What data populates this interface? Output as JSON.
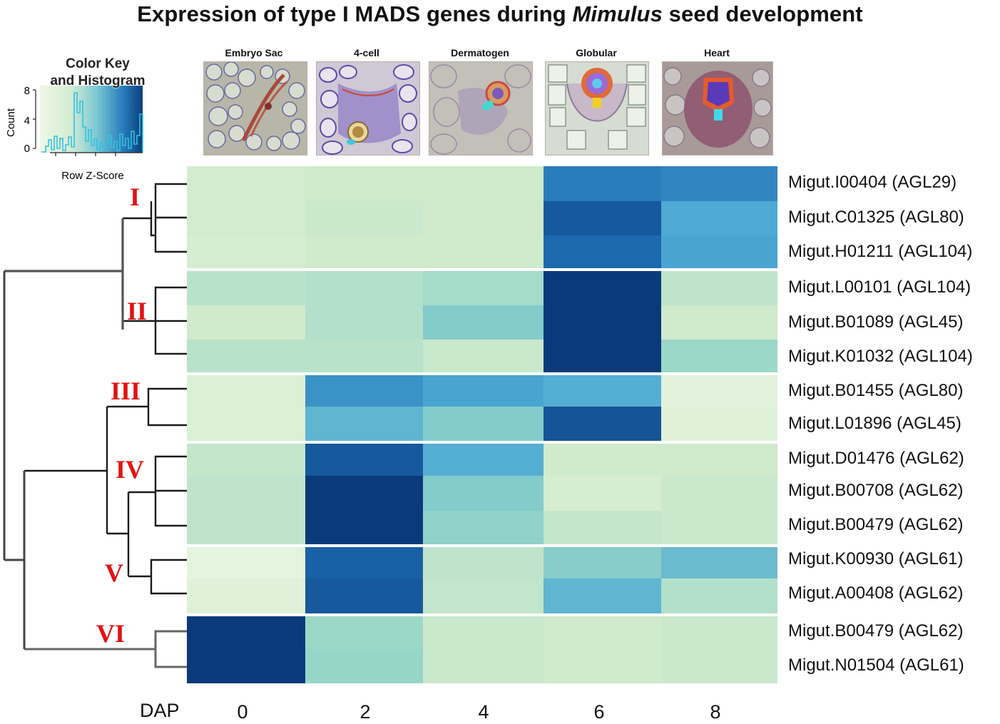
{
  "title": {
    "prefix": "Expression of type I MADS genes during ",
    "italic": "Mimulus",
    "suffix": " seed development"
  },
  "color_key": {
    "title_line1": "Color Key",
    "title_line2": "and Histogram",
    "ylabel": "Count",
    "xlabel": "Row Z-Score",
    "yticks": [
      "8",
      "4",
      "0"
    ],
    "colors": {
      "low": "#eef8e6",
      "mid": "#8fd0c8",
      "high": "#0a3d7c"
    },
    "histogram_color": "#33c2e0"
  },
  "stages": [
    "Embryo Sac",
    "4-cell",
    "Dermatogen",
    "Globular",
    "Heart"
  ],
  "chart_data": {
    "type": "heatmap",
    "title": "Expression of type I MADS genes during Mimulus seed development",
    "xlabel": "DAP",
    "x": [
      "0",
      "2",
      "4",
      "6",
      "8"
    ],
    "value_scale": "row z-score (approx., 0 = lowest, 1 = highest)",
    "rows": [
      "Migut.I00404  (AGL29)",
      "Migut.C01325 (AGL80)",
      "Migut.H01211 (AGL104)",
      "Migut.L00101 (AGL104)",
      "Migut.B01089 (AGL45)",
      "Migut.K01032 (AGL104)",
      "Migut.B01455 (AGL80)",
      "Migut.L01896 (AGL45)",
      "Migut.D01476 (AGL62)",
      "Migut.B00708 (AGL62)",
      "Migut.B00479 (AGL62)",
      "Migut.K00930 (AGL61)",
      "Migut.A00408 (AGL62)",
      "Migut.B00479 (AGL62)",
      "Migut.N01504 (AGL61)"
    ],
    "values": [
      [
        0.18,
        0.2,
        0.2,
        0.75,
        0.72
      ],
      [
        0.18,
        0.22,
        0.2,
        0.88,
        0.6
      ],
      [
        0.16,
        0.2,
        0.2,
        0.82,
        0.62
      ],
      [
        0.28,
        0.3,
        0.35,
        1.0,
        0.26
      ],
      [
        0.2,
        0.3,
        0.45,
        1.0,
        0.2
      ],
      [
        0.28,
        0.28,
        0.22,
        1.0,
        0.38
      ],
      [
        0.12,
        0.68,
        0.62,
        0.58,
        0.08
      ],
      [
        0.12,
        0.55,
        0.45,
        0.9,
        0.1
      ],
      [
        0.24,
        0.88,
        0.58,
        0.2,
        0.2
      ],
      [
        0.26,
        1.0,
        0.45,
        0.16,
        0.22
      ],
      [
        0.26,
        1.0,
        0.42,
        0.24,
        0.22
      ],
      [
        0.06,
        0.85,
        0.26,
        0.44,
        0.52
      ],
      [
        0.1,
        0.88,
        0.25,
        0.55,
        0.3
      ],
      [
        1.0,
        0.38,
        0.22,
        0.2,
        0.22
      ],
      [
        1.0,
        0.4,
        0.22,
        0.2,
        0.22
      ]
    ],
    "clades": [
      {
        "label": "I",
        "rows": [
          0,
          2
        ]
      },
      {
        "label": "II",
        "rows": [
          3,
          5
        ]
      },
      {
        "label": "III",
        "rows": [
          6,
          7
        ]
      },
      {
        "label": "IV",
        "rows": [
          8,
          10
        ]
      },
      {
        "label": "V",
        "rows": [
          11,
          12
        ]
      },
      {
        "label": "VI",
        "rows": [
          13,
          14
        ]
      }
    ]
  }
}
